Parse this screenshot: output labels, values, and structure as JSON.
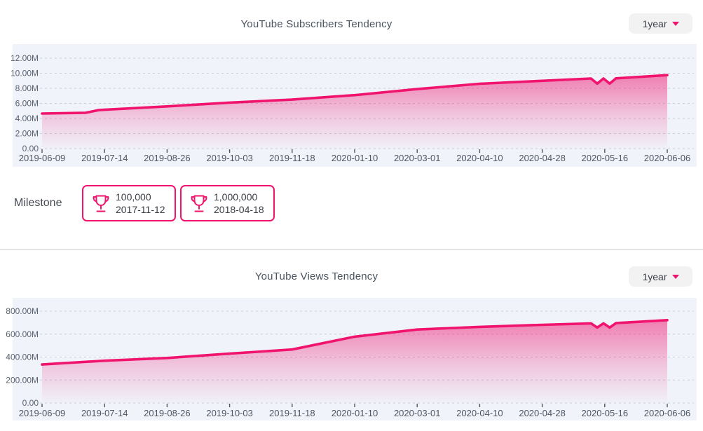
{
  "accent_color": "#f0146e",
  "panel_bg": "#f0f3fa",
  "ui": {
    "range_selectors": [
      {
        "label": "1year"
      },
      {
        "label": "1year"
      }
    ]
  },
  "milestone": {
    "label": "Milestone",
    "badges": [
      {
        "icon": "trophy-icon",
        "value": "100,000",
        "date": "2017-11-12"
      },
      {
        "icon": "trophy-icon",
        "value": "1,000,000",
        "date": "2018-04-18"
      }
    ]
  },
  "chart_data": [
    {
      "type": "area",
      "title": "YouTube Subscribers Tendency",
      "xlabel": "",
      "ylabel": "",
      "legend": "none",
      "grid": "dashed-horizontal",
      "x_tick_labels": [
        "2019-06-09",
        "2019-07-14",
        "2019-08-26",
        "2019-10-03",
        "2019-11-18",
        "2020-01-10",
        "2020-03-01",
        "2020-04-10",
        "2020-04-28",
        "2020-05-16",
        "2020-06-06"
      ],
      "y_tick_labels": [
        "12.00M",
        "10.00M",
        "8.00M",
        "6.00M",
        "4.00M",
        "2.00M",
        "0.00"
      ],
      "y_tick_values": [
        12,
        10,
        8,
        6,
        4,
        2,
        0
      ],
      "ylim": [
        0,
        12
      ],
      "unit": "millions of subscribers",
      "series": [
        {
          "name": "Subscribers",
          "points": [
            {
              "t": 0,
              "v": 4.65
            },
            {
              "t": 0.7,
              "v": 4.75
            },
            {
              "t": 0.9,
              "v": 5.1
            },
            {
              "t": 1,
              "v": 5.15
            },
            {
              "t": 2,
              "v": 5.6
            },
            {
              "t": 3,
              "v": 6.1
            },
            {
              "t": 4,
              "v": 6.5
            },
            {
              "t": 5,
              "v": 7.1
            },
            {
              "t": 6,
              "v": 7.9
            },
            {
              "t": 7,
              "v": 8.6
            },
            {
              "t": 8,
              "v": 9.0
            },
            {
              "t": 8.78,
              "v": 9.3
            },
            {
              "t": 8.88,
              "v": 8.62
            },
            {
              "t": 8.98,
              "v": 9.3
            },
            {
              "t": 9.08,
              "v": 8.62
            },
            {
              "t": 9.18,
              "v": 9.32
            },
            {
              "t": 10,
              "v": 9.75
            }
          ]
        }
      ]
    },
    {
      "type": "area",
      "title": "YouTube Views Tendency",
      "xlabel": "",
      "ylabel": "",
      "legend": "none",
      "grid": "dashed-horizontal",
      "x_tick_labels": [
        "2019-06-09",
        "2019-07-14",
        "2019-08-26",
        "2019-10-03",
        "2019-11-18",
        "2020-01-10",
        "2020-03-01",
        "2020-04-10",
        "2020-04-28",
        "2020-05-16",
        "2020-06-06"
      ],
      "y_tick_labels": [
        "800.00M",
        "600.00M",
        "400.00M",
        "200.00M",
        "0.00"
      ],
      "y_tick_values": [
        800,
        600,
        400,
        200,
        0
      ],
      "ylim": [
        0,
        800
      ],
      "unit": "millions of views",
      "series": [
        {
          "name": "Views",
          "points": [
            {
              "t": 0,
              "v": 335
            },
            {
              "t": 1,
              "v": 368
            },
            {
              "t": 2,
              "v": 392
            },
            {
              "t": 3,
              "v": 430
            },
            {
              "t": 4,
              "v": 466
            },
            {
              "t": 5,
              "v": 578
            },
            {
              "t": 6,
              "v": 640
            },
            {
              "t": 7,
              "v": 663
            },
            {
              "t": 8,
              "v": 681
            },
            {
              "t": 8.78,
              "v": 694
            },
            {
              "t": 8.88,
              "v": 657
            },
            {
              "t": 8.98,
              "v": 694
            },
            {
              "t": 9.08,
              "v": 657
            },
            {
              "t": 9.18,
              "v": 696
            },
            {
              "t": 10,
              "v": 722
            }
          ]
        }
      ]
    }
  ]
}
